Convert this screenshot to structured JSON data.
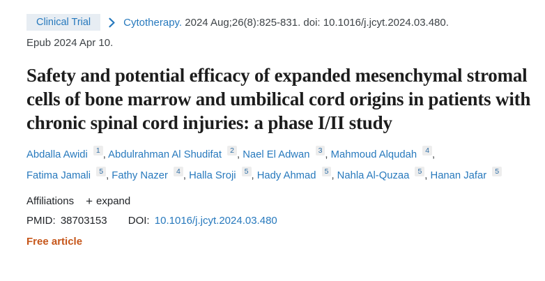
{
  "header": {
    "badge_label": "Clinical Trial",
    "journal": "Cytotherapy.",
    "citation": "2024 Aug;26(8):825-831. doi: 10.1016/j.jcyt.2024.03.480.",
    "epub": "Epub 2024 Apr 10."
  },
  "icons": {
    "chevron_right": ">",
    "plus": "+"
  },
  "title": "Safety and potential efficacy of expanded mesenchymal stromal cells of bone marrow and umbilical cord origins in patients with chronic spinal cord injuries: a phase I/II study",
  "authors": [
    {
      "name": "Abdalla Awidi",
      "affiliation": "1"
    },
    {
      "name": "Abdulrahman Al Shudifat",
      "affiliation": "2"
    },
    {
      "name": "Nael El Adwan",
      "affiliation": "3"
    },
    {
      "name": "Mahmoud Alqudah",
      "affiliation": "4"
    },
    {
      "name": "Fatima Jamali",
      "affiliation": "5"
    },
    {
      "name": "Fathy Nazer",
      "affiliation": "4"
    },
    {
      "name": "Halla Sroji",
      "affiliation": "5"
    },
    {
      "name": "Hady Ahmad",
      "affiliation": "5"
    },
    {
      "name": "Nahla Al-Quzaa",
      "affiliation": "5"
    },
    {
      "name": "Hanan Jafar",
      "affiliation": "5"
    }
  ],
  "affiliations": {
    "label": "Affiliations",
    "expand_label": "expand"
  },
  "ids": {
    "pmid_label": "PMID:",
    "pmid_value": "38703153",
    "doi_label": "DOI:",
    "doi_value": "10.1016/j.jcyt.2024.03.480"
  },
  "free_article_label": "Free article",
  "colors": {
    "link_blue": "#2779bd",
    "badge_background": "#e7edf3",
    "title_text": "#1d1d1d",
    "body_text": "#3e4347",
    "free_article_orange": "#c6561a",
    "superscript_background": "#ededed"
  }
}
